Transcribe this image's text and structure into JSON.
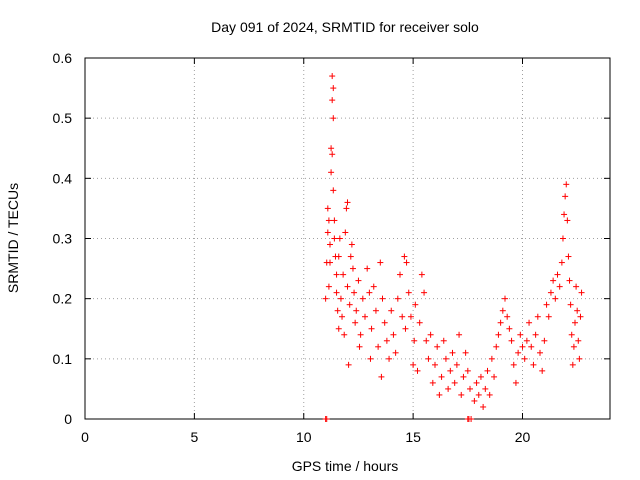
{
  "chart_data": {
    "type": "scatter",
    "title": "Day 091 of 2024, SRMTID for receiver solo",
    "xlabel": "GPS time / hours",
    "ylabel": "SRMTID / TECUs",
    "xlim": [
      0,
      24
    ],
    "ylim": [
      0,
      0.6
    ],
    "xticks": [
      0,
      5,
      10,
      15,
      20
    ],
    "yticks": [
      0,
      0.1,
      0.2,
      0.3,
      0.4,
      0.5,
      0.6
    ],
    "ytick_labels": [
      "0",
      "0.1",
      "0.2",
      "0.3",
      "0.4",
      "0.5",
      "0.6"
    ],
    "grid": true,
    "marker": "+",
    "color": "#ff0000",
    "series": [
      {
        "name": "SRMTID",
        "points": [
          [
            11.0,
            0.0
          ],
          [
            11.05,
            0.0
          ],
          [
            11.0,
            0.2
          ],
          [
            11.05,
            0.26
          ],
          [
            11.1,
            0.31
          ],
          [
            11.1,
            0.35
          ],
          [
            11.15,
            0.22
          ],
          [
            11.15,
            0.33
          ],
          [
            11.2,
            0.29
          ],
          [
            11.2,
            0.26
          ],
          [
            11.25,
            0.45
          ],
          [
            11.25,
            0.41
          ],
          [
            11.3,
            0.53
          ],
          [
            11.3,
            0.57
          ],
          [
            11.35,
            0.55
          ],
          [
            11.35,
            0.5
          ],
          [
            11.3,
            0.44
          ],
          [
            11.35,
            0.38
          ],
          [
            11.4,
            0.33
          ],
          [
            11.4,
            0.3
          ],
          [
            11.45,
            0.27
          ],
          [
            11.5,
            0.24
          ],
          [
            11.5,
            0.21
          ],
          [
            11.55,
            0.18
          ],
          [
            11.6,
            0.15
          ],
          [
            11.6,
            0.27
          ],
          [
            11.65,
            0.3
          ],
          [
            11.7,
            0.2
          ],
          [
            11.75,
            0.17
          ],
          [
            11.8,
            0.24
          ],
          [
            11.85,
            0.14
          ],
          [
            11.9,
            0.31
          ],
          [
            11.95,
            0.35
          ],
          [
            12.0,
            0.36
          ],
          [
            12.0,
            0.22
          ],
          [
            12.05,
            0.09
          ],
          [
            12.1,
            0.19
          ],
          [
            12.15,
            0.27
          ],
          [
            12.2,
            0.29
          ],
          [
            12.25,
            0.25
          ],
          [
            12.3,
            0.21
          ],
          [
            12.35,
            0.16
          ],
          [
            12.4,
            0.18
          ],
          [
            12.5,
            0.23
          ],
          [
            12.55,
            0.12
          ],
          [
            12.6,
            0.14
          ],
          [
            12.7,
            0.2
          ],
          [
            12.8,
            0.17
          ],
          [
            12.9,
            0.25
          ],
          [
            13.0,
            0.21
          ],
          [
            13.05,
            0.1
          ],
          [
            13.1,
            0.15
          ],
          [
            13.2,
            0.22
          ],
          [
            13.3,
            0.18
          ],
          [
            13.4,
            0.12
          ],
          [
            13.5,
            0.26
          ],
          [
            13.55,
            0.07
          ],
          [
            13.6,
            0.2
          ],
          [
            13.7,
            0.16
          ],
          [
            13.8,
            0.13
          ],
          [
            13.9,
            0.1
          ],
          [
            14.0,
            0.18
          ],
          [
            14.1,
            0.14
          ],
          [
            14.2,
            0.11
          ],
          [
            14.3,
            0.2
          ],
          [
            14.4,
            0.24
          ],
          [
            14.5,
            0.17
          ],
          [
            14.6,
            0.27
          ],
          [
            14.65,
            0.15
          ],
          [
            14.7,
            0.26
          ],
          [
            14.8,
            0.21
          ],
          [
            14.9,
            0.17
          ],
          [
            15.0,
            0.09
          ],
          [
            15.05,
            0.13
          ],
          [
            15.1,
            0.19
          ],
          [
            15.2,
            0.08
          ],
          [
            15.3,
            0.16
          ],
          [
            15.4,
            0.24
          ],
          [
            15.5,
            0.21
          ],
          [
            15.6,
            0.13
          ],
          [
            15.7,
            0.1
          ],
          [
            15.8,
            0.14
          ],
          [
            15.9,
            0.06
          ],
          [
            16.0,
            0.09
          ],
          [
            16.1,
            0.12
          ],
          [
            16.2,
            0.04
          ],
          [
            16.3,
            0.07
          ],
          [
            16.4,
            0.13
          ],
          [
            16.5,
            0.1
          ],
          [
            16.6,
            0.05
          ],
          [
            16.7,
            0.08
          ],
          [
            16.8,
            0.11
          ],
          [
            16.9,
            0.06
          ],
          [
            17.0,
            0.09
          ],
          [
            17.1,
            0.14
          ],
          [
            17.2,
            0.04
          ],
          [
            17.3,
            0.07
          ],
          [
            17.4,
            0.11
          ],
          [
            17.5,
            0.0
          ],
          [
            17.55,
            0.0
          ],
          [
            17.65,
            0.0
          ],
          [
            17.5,
            0.08
          ],
          [
            17.6,
            0.05
          ],
          [
            17.8,
            0.03
          ],
          [
            17.9,
            0.06
          ],
          [
            18.0,
            0.04
          ],
          [
            18.1,
            0.07
          ],
          [
            18.2,
            0.02
          ],
          [
            18.3,
            0.05
          ],
          [
            18.4,
            0.08
          ],
          [
            18.5,
            0.04
          ],
          [
            18.6,
            0.1
          ],
          [
            18.7,
            0.07
          ],
          [
            18.8,
            0.12
          ],
          [
            18.9,
            0.14
          ],
          [
            19.0,
            0.16
          ],
          [
            19.1,
            0.18
          ],
          [
            19.2,
            0.2
          ],
          [
            19.3,
            0.17
          ],
          [
            19.4,
            0.15
          ],
          [
            19.5,
            0.13
          ],
          [
            19.6,
            0.09
          ],
          [
            19.7,
            0.06
          ],
          [
            19.8,
            0.11
          ],
          [
            19.9,
            0.14
          ],
          [
            20.0,
            0.12
          ],
          [
            20.1,
            0.1
          ],
          [
            20.2,
            0.13
          ],
          [
            20.3,
            0.16
          ],
          [
            20.4,
            0.12
          ],
          [
            20.5,
            0.09
          ],
          [
            20.6,
            0.14
          ],
          [
            20.7,
            0.17
          ],
          [
            20.8,
            0.11
          ],
          [
            20.9,
            0.08
          ],
          [
            21.0,
            0.13
          ],
          [
            21.1,
            0.19
          ],
          [
            21.2,
            0.17
          ],
          [
            21.3,
            0.21
          ],
          [
            21.4,
            0.23
          ],
          [
            21.5,
            0.2
          ],
          [
            21.6,
            0.24
          ],
          [
            21.7,
            0.22
          ],
          [
            21.8,
            0.26
          ],
          [
            21.85,
            0.3
          ],
          [
            21.9,
            0.34
          ],
          [
            21.95,
            0.37
          ],
          [
            22.0,
            0.39
          ],
          [
            22.05,
            0.33
          ],
          [
            22.1,
            0.27
          ],
          [
            22.15,
            0.23
          ],
          [
            22.2,
            0.19
          ],
          [
            22.25,
            0.14
          ],
          [
            22.3,
            0.09
          ],
          [
            22.35,
            0.12
          ],
          [
            22.4,
            0.16
          ],
          [
            22.45,
            0.22
          ],
          [
            22.5,
            0.18
          ],
          [
            22.55,
            0.13
          ],
          [
            22.6,
            0.1
          ],
          [
            22.65,
            0.17
          ],
          [
            22.7,
            0.21
          ]
        ]
      }
    ]
  }
}
